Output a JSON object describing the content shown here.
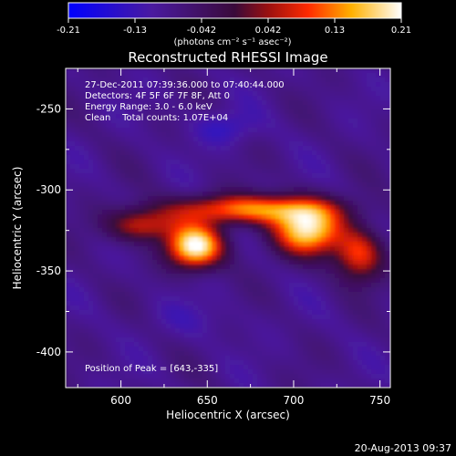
{
  "colorbar": {
    "tick_labels": [
      "-0.21",
      "-0.13",
      "-0.042",
      "0.042",
      "0.13",
      "0.21"
    ],
    "unit_label": "(photons cm⁻² s⁻¹ asec⁻²)",
    "range": [
      -0.21,
      0.21
    ]
  },
  "chart_data": {
    "type": "heatmap",
    "title": "Reconstructed RHESSI Image",
    "xlabel": "Heliocentric X (arcsec)",
    "ylabel": "Heliocentric Y (arcsec)",
    "xlim": [
      568,
      756
    ],
    "ylim": [
      -422,
      -225
    ],
    "x_ticks": [
      600,
      650,
      700,
      750
    ],
    "y_ticks": [
      -250,
      -300,
      -350,
      -400
    ],
    "x_tick_labels": [
      "600",
      "650",
      "700",
      "750"
    ],
    "y_tick_labels": [
      "-250",
      "-300",
      "-350",
      "-400"
    ],
    "colormap": "blue-purple-red-yellow-white",
    "value_range": [
      -0.21,
      0.21
    ],
    "sources": [
      {
        "x": 643,
        "y": -335,
        "peak": 0.21,
        "rx": 16,
        "ry": 13
      },
      {
        "x": 708,
        "y": -325,
        "peak": 0.18,
        "rx": 20,
        "ry": 15
      },
      {
        "x": 675,
        "y": -312,
        "peak": 0.13,
        "rx": 45,
        "ry": 9
      },
      {
        "x": 612,
        "y": -322,
        "peak": 0.07,
        "rx": 20,
        "ry": 10
      },
      {
        "x": 738,
        "y": -340,
        "peak": 0.09,
        "rx": 14,
        "ry": 16
      }
    ],
    "annotations": [
      "27-Dec-2011 07:39:36.000 to 07:40:44.000",
      "Detectors: 4F 5F 6F 7F 8F, Att 0",
      "Energy Range: 3.0 - 6.0 keV",
      "Clean    Total counts: 1.07E+04"
    ],
    "peak_label": "Position of Peak = [643,-335]"
  },
  "footer": {
    "date": "20-Aug-2013 09:37"
  },
  "colors": {
    "background": "#000000",
    "text": "#ffffff"
  }
}
